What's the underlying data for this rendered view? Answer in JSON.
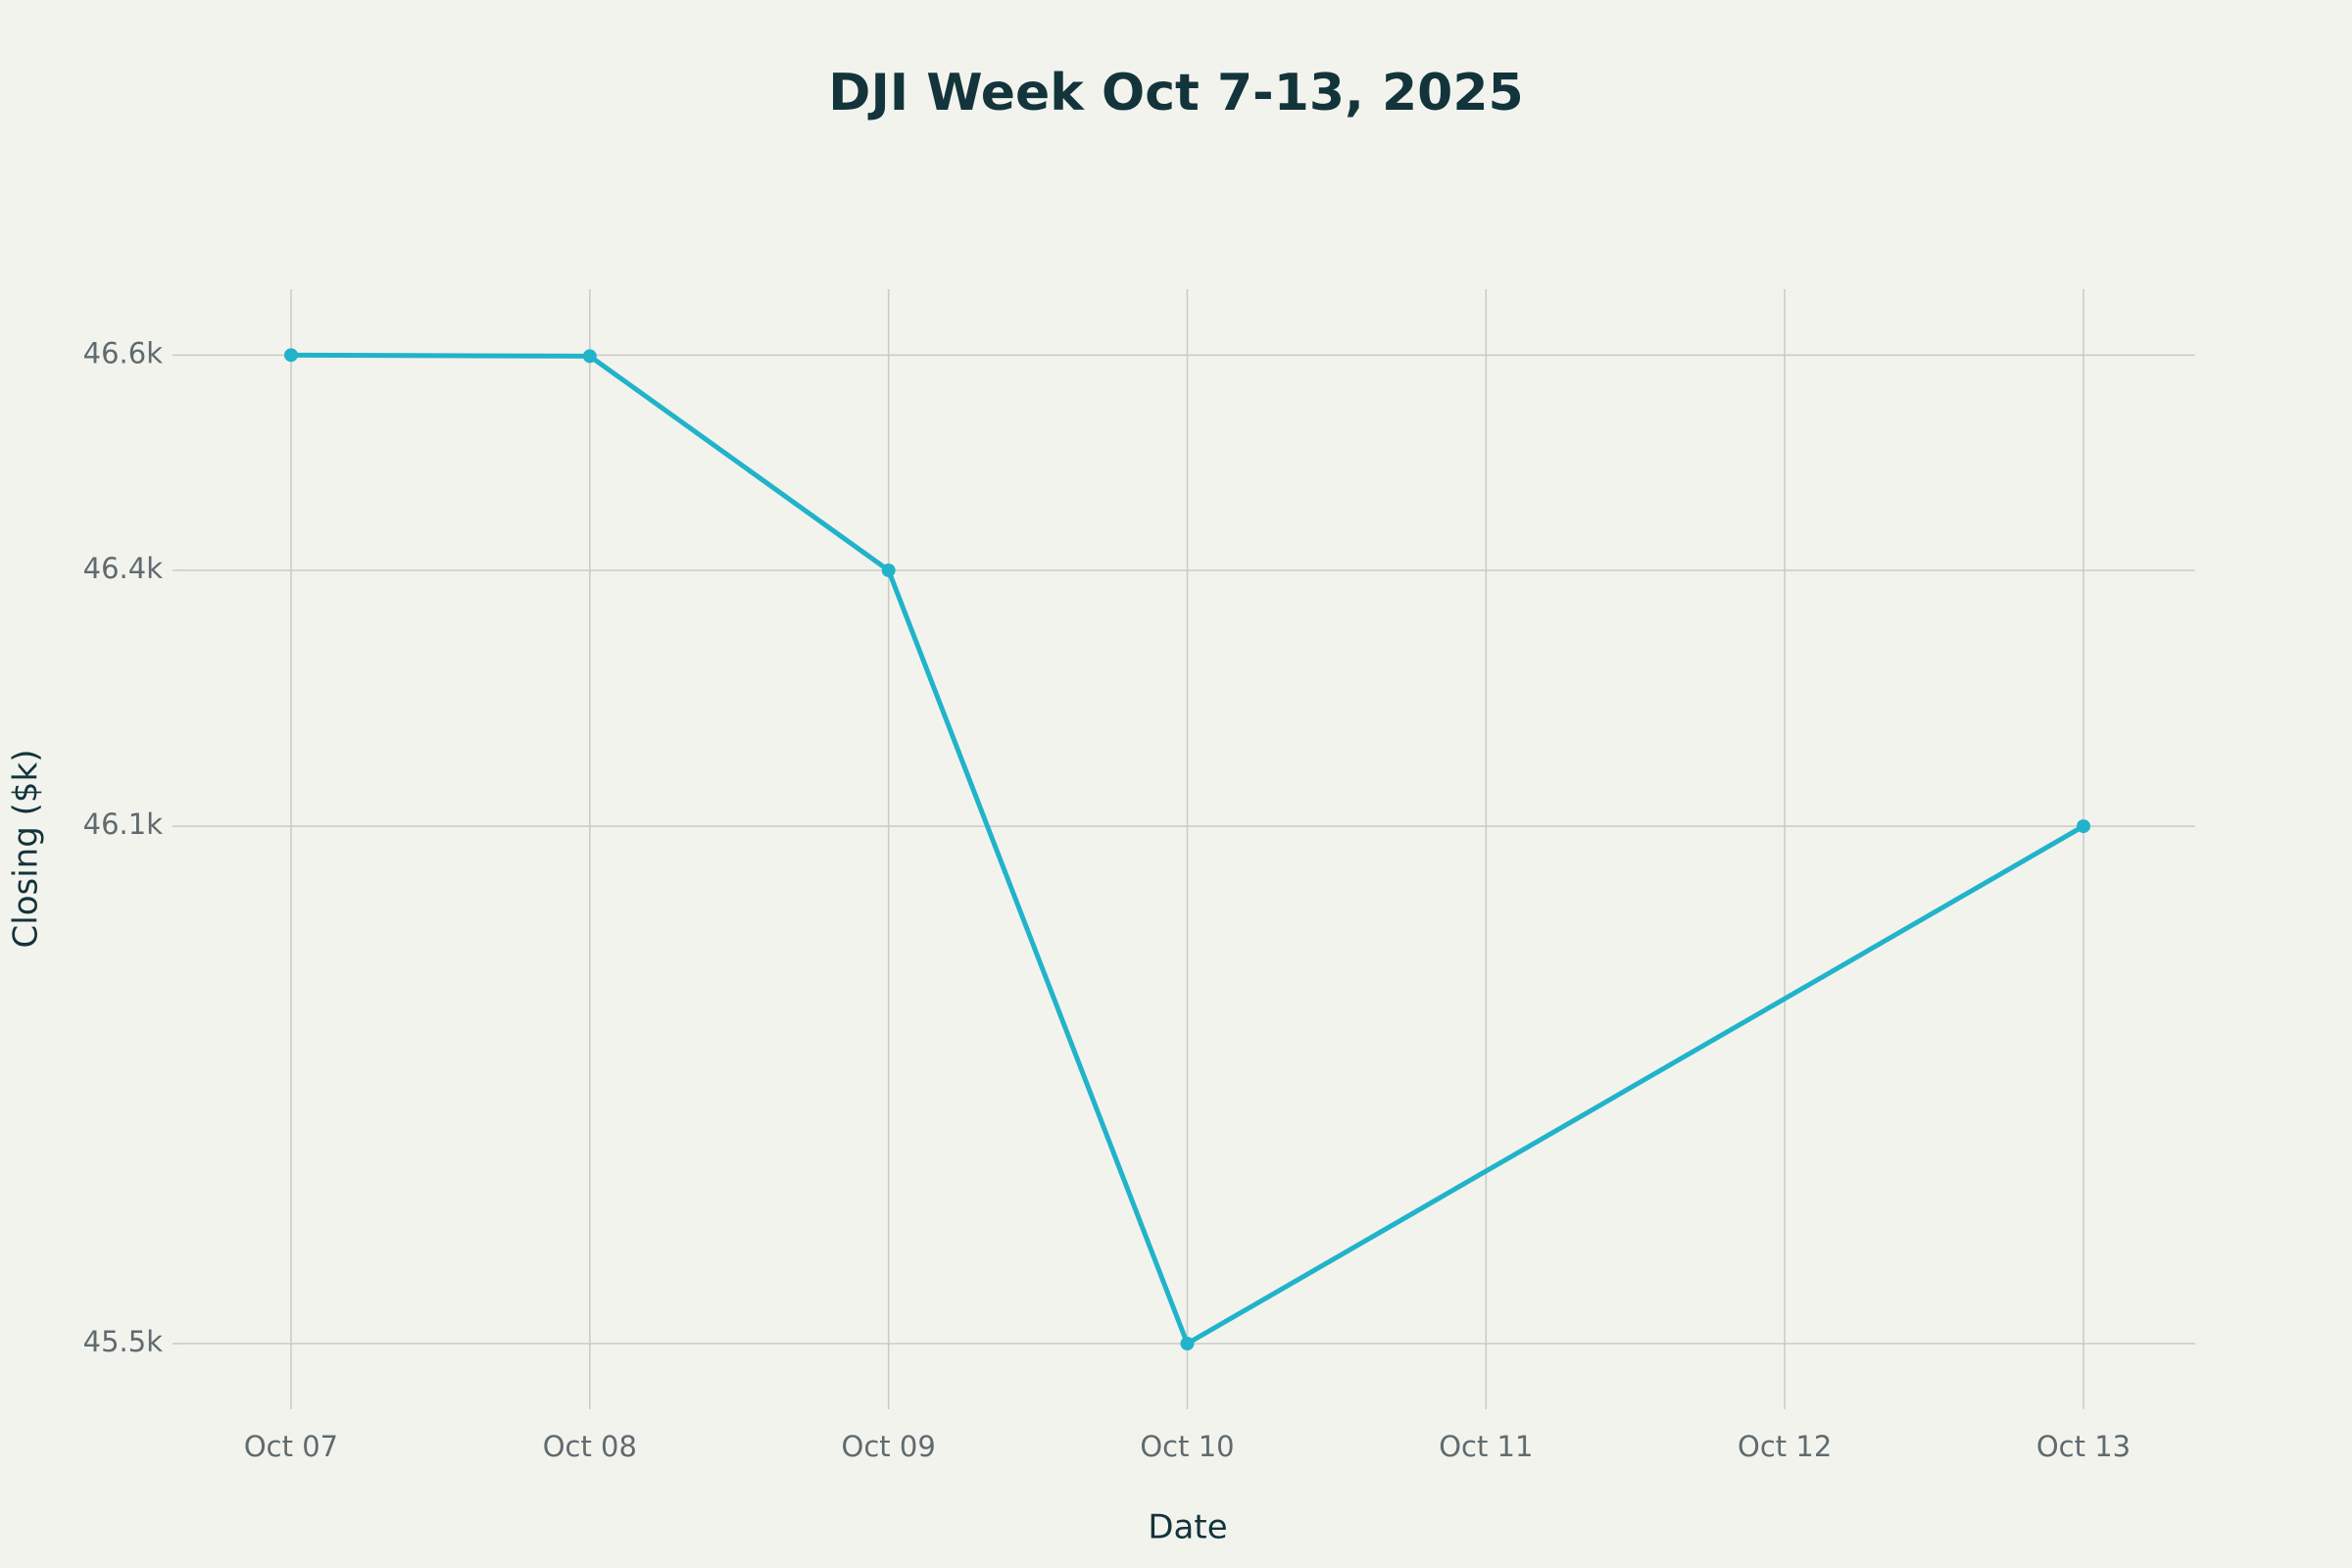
{
  "chart_data": {
    "type": "line",
    "title": "DJI Week Oct 7-13, 2025",
    "x_label": "Date",
    "y_label": "Closing ($k)",
    "x": [
      "Oct 07",
      "Oct 08",
      "Oct 09",
      "Oct 10",
      "Oct 13"
    ],
    "values": [
      46602.98,
      46601.78,
      46358.42,
      45479.6,
      46067.58
    ],
    "color": "#21b3c9",
    "xticks": [
      "Oct 07",
      "Oct 08",
      "Oct 09",
      "Oct 10",
      "Oct 11",
      "Oct 12",
      "Oct 13"
    ],
    "ylim": [
      45405,
      46678
    ],
    "yticks": [
      {
        "value": 45479.6,
        "label": "45.5k"
      },
      {
        "value": 46067.58,
        "label": "46.1k"
      },
      {
        "value": 46358.42,
        "label": "46.4k"
      },
      {
        "value": 46602.98,
        "label": "46.6k"
      }
    ],
    "grid": true
  }
}
